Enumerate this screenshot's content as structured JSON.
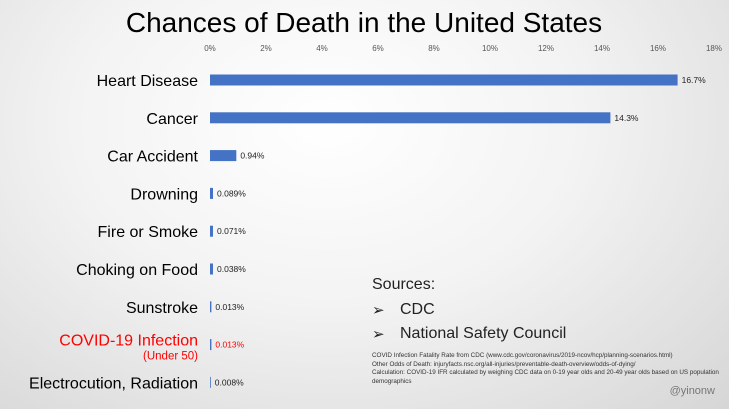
{
  "chart_data": {
    "type": "bar",
    "orientation": "horizontal",
    "title": "Chances of Death in the United States",
    "categories": [
      "Heart Disease",
      "Cancer",
      "Car Accident",
      "Drowning",
      "Fire or Smoke",
      "Choking on Food",
      "Sunstroke",
      "COVID-19 Infection",
      "Electrocution, Radiation"
    ],
    "category_subtitles": [
      "",
      "",
      "",
      "",
      "",
      "",
      "",
      "(Under 50)",
      ""
    ],
    "highlight_index": 7,
    "values": [
      16.7,
      14.3,
      0.94,
      0.089,
      0.071,
      0.038,
      0.013,
      0.013,
      0.008
    ],
    "value_labels": [
      "16.7%",
      "14.3%",
      "0.94%",
      "0.089%",
      "0.071%",
      "0.038%",
      "0.013%",
      "0.013%",
      "0.008%"
    ],
    "xlim": [
      0,
      18
    ],
    "x_ticks": [
      0,
      2,
      4,
      6,
      8,
      10,
      12,
      14,
      16,
      18
    ],
    "x_tick_labels": [
      "0%",
      "2%",
      "4%",
      "6%",
      "8%",
      "10%",
      "12%",
      "14%",
      "16%",
      "18%"
    ],
    "xlabel": "",
    "ylabel": "",
    "grid": false,
    "colors": {
      "bar": "#4472c4",
      "highlight_text": "#ff0000"
    }
  },
  "sources": {
    "heading": "Sources:",
    "items": [
      "CDC",
      "National Safety Council"
    ]
  },
  "notes": [
    "COVID Infection Fatality Rate from CDC  (www.cdc.gov/coronavirus/2019-ncov/hcp/planning-scenarios.html)",
    "Other Odds of Death: injuryfacts.nsc.org/all-injuries/preventable-death-overview/odds-of-dying/",
    "Calculation: COVID-19 IFR calculated by weighing CDC data on 0-19 year olds and 20-49 year olds based on US population demographics"
  ],
  "watermark": "@yinonw"
}
